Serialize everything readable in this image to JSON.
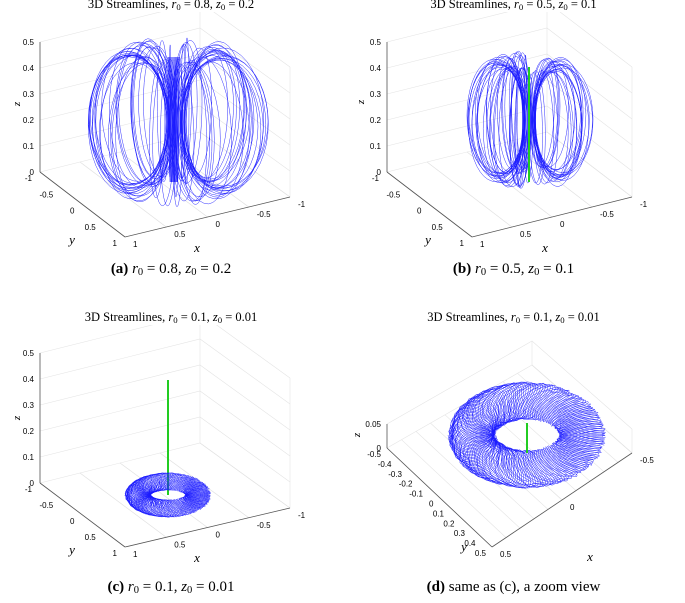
{
  "panels": [
    {
      "id": "a",
      "title_pre": "3D Streamlines, ",
      "title_r": "0.8",
      "title_z": "0.2",
      "caption_tag": "(a)",
      "caption_r": "0.8",
      "caption_z": "0.2",
      "z_ticks": [
        "0.5",
        "0.4",
        "0.3",
        "0.2",
        "0.1",
        "0"
      ],
      "y_ticks": [
        "-1",
        "-0.5",
        "0",
        "0.5",
        "1"
      ],
      "x_ticks": [
        "1",
        "0.5",
        "0",
        "-0.5",
        "-1"
      ],
      "shape": "tall-torus"
    },
    {
      "id": "b",
      "title_pre": "3D Streamlines, ",
      "title_r": "0.5",
      "title_z": "0.1",
      "caption_tag": "(b)",
      "caption_r": "0.5",
      "caption_z": "0.1",
      "z_ticks": [
        "0.5",
        "0.4",
        "0.3",
        "0.2",
        "0.1",
        "0"
      ],
      "y_ticks": [
        "-1",
        "-0.5",
        "0",
        "0.5",
        "1"
      ],
      "x_ticks": [
        "1",
        "0.5",
        "0",
        "-0.5",
        "-1"
      ],
      "shape": "round-torus"
    },
    {
      "id": "c",
      "title_pre": "3D Streamlines, ",
      "title_r": "0.1",
      "title_z": "0.01",
      "caption_tag": "(c)",
      "caption_r": "0.1",
      "caption_z": "0.01",
      "z_ticks": [
        "0.5",
        "0.4",
        "0.3",
        "0.2",
        "0.1",
        "0"
      ],
      "y_ticks": [
        "-1",
        "-0.5",
        "0",
        "0.5",
        "1"
      ],
      "x_ticks": [
        "1",
        "0.5",
        "0",
        "-0.5",
        "-1"
      ],
      "shape": "flat-ring"
    },
    {
      "id": "d",
      "title_pre": "3D Streamlines, ",
      "title_r": "0.1",
      "title_z": "0.01",
      "caption_tag": "(d)",
      "caption_text": "same as (c), a zoom view",
      "z_ticks": [
        "0.05",
        "0"
      ],
      "y_ticks": [
        "-0.5",
        "-0.4",
        "-0.3",
        "-0.2",
        "-0.1",
        "0",
        "0.1",
        "0.2",
        "0.3",
        "0.4",
        "0.5"
      ],
      "x_ticks": [
        "0.5",
        "0",
        "-0.5"
      ],
      "shape": "zoom-ring"
    }
  ],
  "labels": {
    "x": "x",
    "y": "y",
    "z": "z",
    "r": "r",
    "z0": "z",
    "sub0": "0",
    "eq": " = ",
    "sep": ", "
  },
  "colors": {
    "streamline": "#1a1aff",
    "axis_line": "#22cc22",
    "grid": "#e4e4e4",
    "box": "#555555"
  }
}
